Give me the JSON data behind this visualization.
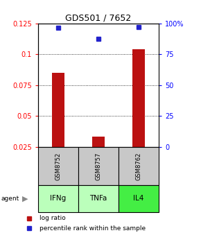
{
  "title": "GDS501 / 7652",
  "samples": [
    "GSM8752",
    "GSM8757",
    "GSM8762"
  ],
  "agents": [
    "IFNg",
    "TNFa",
    "IL4"
  ],
  "log_ratio": [
    0.085,
    0.033,
    0.104
  ],
  "percentile_rank": [
    0.965,
    0.875,
    0.968
  ],
  "ylim_left": [
    0.025,
    0.125
  ],
  "ylim_right": [
    0.0,
    1.0
  ],
  "yticks_left": [
    0.025,
    0.05,
    0.075,
    0.1,
    0.125
  ],
  "ytick_labels_left": [
    "0.025",
    "0.05",
    "0.075",
    "0.1",
    "0.125"
  ],
  "yticks_right": [
    0.0,
    0.25,
    0.5,
    0.75,
    1.0
  ],
  "ytick_labels_right": [
    "0",
    "25",
    "50",
    "75",
    "100%"
  ],
  "bar_color": "#bb1111",
  "dot_color": "#2222cc",
  "agent_colors": [
    "#bbffbb",
    "#bbffbb",
    "#44ee44"
  ],
  "sample_bg": "#c8c8c8",
  "bar_width": 0.3,
  "legend_items": [
    "log ratio",
    "percentile rank within the sample"
  ],
  "x_positions": [
    1,
    2,
    3
  ],
  "xlim": [
    0.5,
    3.5
  ]
}
